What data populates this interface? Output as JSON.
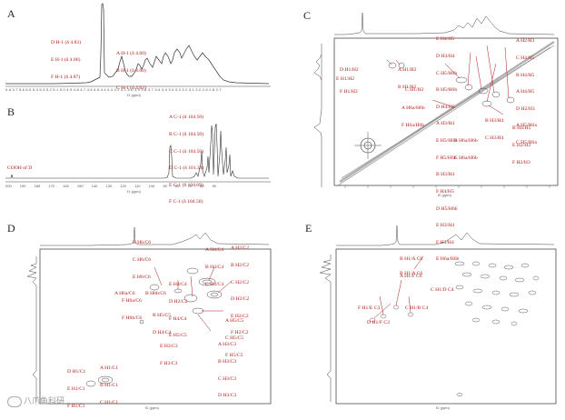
{
  "panels": {
    "a": {
      "letter": "A",
      "ann_left": [
        "D H-1 (δ 4.83)",
        "E H-1 (δ 4.86)",
        "F H-1 (δ 4.87)"
      ],
      "ann_right": [
        "A H-1 (δ 4.60)",
        "B H-1 (δ 4.60)",
        "C H-1 (δ 4.62)"
      ],
      "ticks": "5.8 5.7 5.6 5.5 5.4 5.3 5.2 5.1 5.0 4.9 4.8 4.7 4.6 4.5 4.4 4.3 4.2 4.1 4.0 3.9 3.8 3.7 3.6 3.5 3.4 3.3 3.2 3.1 3.0 2.9 2.8 2.7",
      "unit": "f1 (ppm)"
    },
    "b": {
      "letter": "B",
      "ann": [
        "A C-1 (δ 104.50)",
        "B C-1 (δ 104.50)",
        "C C-1 (δ 104.50)",
        "D C-1 (δ 101.31)",
        "E C-1 (δ 104.69)",
        "F C-1 (δ 104.50)"
      ],
      "cooh": "COOH of D",
      "ticks": "200 190 180 170 160 150 140 130 120 110 100 90 80 70 60 50",
      "unit": "f1 (ppm)"
    },
    "c": {
      "letter": "C",
      "ann": [
        "D H1/H2",
        "E H1/H2",
        "F H1/H2",
        "A H1/H2",
        "B H1/H2",
        "C H1/H2",
        "A H6a/H6b",
        "F H6a/H6b",
        "E H4/H5",
        "D H3/H4",
        "C H5/H6b",
        "B H5/H6b",
        "D H4/H5",
        "A H3/H4",
        "E H5/H6b",
        "F H5/H6b",
        "B H3/H4",
        "F H4/H5",
        "D H5/H6b",
        "E H3/H4",
        "F H3/H4",
        "E H6a/H6b",
        "A H2/H3",
        "C H4/H5",
        "B H4/H5",
        "A H4/H5",
        "D H2/H3",
        "A H5/H6a",
        "C H5/H6a",
        "B H4/H5",
        "E H2/H3",
        "F H2/H3",
        "B H6a/H6b",
        "C H6a/H6b",
        "B H3/H4",
        "C H3/H4"
      ],
      "unit": "f2 (ppm)"
    },
    "d": {
      "letter": "D",
      "ann": [
        "B H6/C6",
        "C H6/C6",
        "E H6/C6",
        "A H4/C4",
        "B H4/C4",
        "C H4/C4",
        "A H2/C2",
        "B H2/C2",
        "C H2/C2",
        "D H2/C2",
        "E H2/C2",
        "F H2/C2",
        "A H6a/C6",
        "B H6b/C6",
        "F H6a/C6",
        "F H6b/C6",
        "E H4/C4",
        "D H2/C2",
        "F H4/C4",
        "E H5/C5",
        "B H5/C5",
        "D H4/C4",
        "A H5/C5",
        "C H5/C5",
        "F H5/C5",
        "E H3/C3",
        "F H3/C3",
        "A H3/C3",
        "B H3/C3",
        "C H3/C3",
        "D H3/C3",
        "D H1/C1",
        "E H1/C1",
        "F H1/C1",
        "A H1/C1",
        "B H1/C1",
        "C H1/C1"
      ],
      "unit": "f2 (ppm)"
    },
    "e": {
      "letter": "E",
      "ann": [
        "B H1/A C6",
        "A H1/F C6",
        "B H1/A C6",
        "F H1/E C3",
        "C H1/B C4",
        "D H1/F C3",
        "C H1/D C4"
      ],
      "unit": "f2 (ppm)"
    }
  },
  "watermark": "八爪鱼科研",
  "colors": {
    "annotation": "#b01818",
    "spectrum": "#333333"
  }
}
